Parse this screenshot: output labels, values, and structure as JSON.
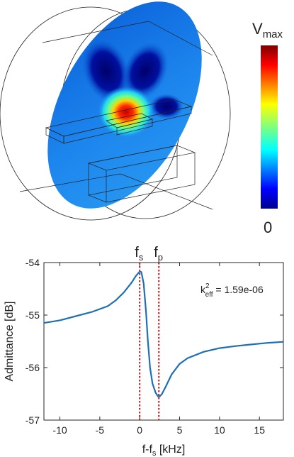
{
  "colorbar": {
    "label_main": "V",
    "label_sub": "max",
    "min_label": "0"
  },
  "chart_data": {
    "type": "line",
    "xlabel_main": "f-f",
    "xlabel_sub": "s",
    "xlabel_unit": " [kHz]",
    "ylabel": "Admittance [dB]",
    "xlim": [
      -12,
      18
    ],
    "ylim": [
      -57,
      -54
    ],
    "xticks": [
      -10,
      -5,
      0,
      5,
      10,
      15
    ],
    "yticks": [
      -57,
      -56,
      -55,
      -54
    ],
    "grid": false,
    "series_color": "#1f6fb5",
    "marker_color": "#cc1111",
    "series": [
      {
        "x": [
          -12,
          -10,
          -8,
          -6,
          -4,
          -3,
          -2,
          -1,
          -0.5,
          0,
          0.2,
          0.5,
          0.8,
          1.0,
          1.3,
          1.6,
          2.0,
          2.3,
          2.5,
          2.8,
          3.2,
          4,
          5,
          6,
          8,
          10,
          12,
          14,
          16,
          18
        ],
        "y": [
          -55.15,
          -55.1,
          -55.02,
          -54.94,
          -54.83,
          -54.72,
          -54.57,
          -54.38,
          -54.26,
          -54.17,
          -54.18,
          -54.4,
          -54.95,
          -55.45,
          -56.0,
          -56.3,
          -56.48,
          -56.55,
          -56.55,
          -56.5,
          -56.38,
          -56.13,
          -55.93,
          -55.82,
          -55.7,
          -55.63,
          -55.59,
          -55.56,
          -55.53,
          -55.51
        ]
      }
    ],
    "markers": [
      {
        "x": 0,
        "label_main": "f",
        "label_sub": "s"
      },
      {
        "x": 2.4,
        "label_main": "f",
        "label_sub": "p"
      }
    ],
    "annotation": {
      "main": "k",
      "sup": "2",
      "sub": "eff",
      "text": " = 1.59e-06"
    }
  }
}
